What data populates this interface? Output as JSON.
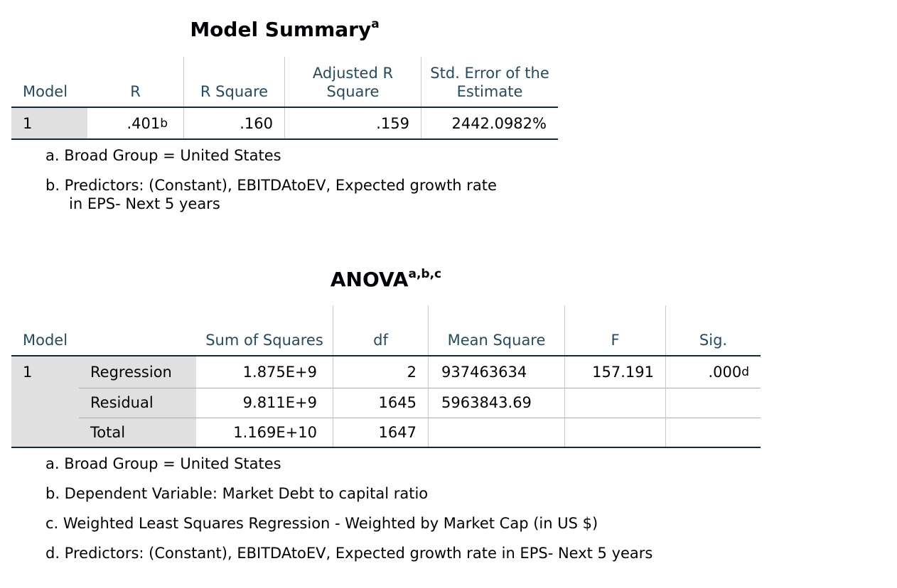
{
  "model_summary": {
    "title": "Model Summary",
    "title_note": "a",
    "headers": [
      "Model",
      "R",
      "R Square",
      "Adjusted R Square",
      "Std. Error of the Estimate"
    ],
    "rows": [
      [
        "1",
        ".401",
        ".160",
        ".159",
        "2442.0982%"
      ]
    ],
    "r_note": "b",
    "footnotes": [
      "a. Broad Group = United States",
      "b. Predictors: (Constant), EBITDAtoEV, Expected growth rate in EPS- Next 5 years"
    ]
  },
  "anova": {
    "title": "ANOVA",
    "title_note": "a,b,c",
    "headers": [
      "Model",
      "Sum of Squares",
      "df",
      "Mean Square",
      "F",
      "Sig."
    ],
    "model": "1",
    "rows": [
      [
        "Regression",
        "1.875E+9",
        "2",
        "937463634",
        "157.191",
        ".000"
      ],
      [
        "Residual",
        "9.811E+9",
        "1645",
        "5963843.69"
      ],
      [
        "Total",
        "1.169E+10",
        "1647"
      ]
    ],
    "sig_note": "d",
    "footnotes": [
      "a. Broad Group = United States",
      "b. Dependent Variable: Market Debt to capital ratio",
      "c. Weighted Least Squares Regression - Weighted by Market Cap (in US $)",
      "d. Predictors: (Constant), EBITDAtoEV, Expected growth rate in EPS- Next 5 years"
    ]
  }
}
